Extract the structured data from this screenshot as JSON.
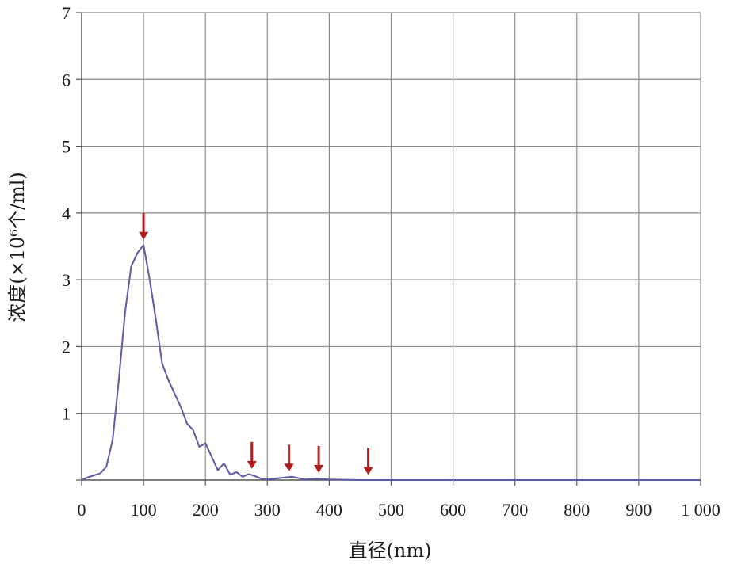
{
  "chart_data": {
    "type": "line",
    "xlabel": "直径(nm)",
    "ylabel": "浓度(×10⁶个/ml)",
    "xlim": [
      0,
      1000
    ],
    "ylim": [
      0,
      7
    ],
    "x_ticks": [
      0,
      100,
      200,
      300,
      400,
      500,
      600,
      700,
      800,
      900,
      1000
    ],
    "x_tick_labels": [
      "0",
      "100",
      "200",
      "300",
      "400",
      "500",
      "600",
      "700",
      "800",
      "900",
      "1 000"
    ],
    "y_ticks": [
      0,
      1,
      2,
      3,
      4,
      5,
      6,
      7
    ],
    "y_tick_labels": [
      "",
      "1",
      "2",
      "3",
      "4",
      "5",
      "6",
      "7"
    ],
    "grid": true,
    "line_color": "#5a5aa8",
    "arrow_color": "#b01c1c",
    "series": [
      {
        "x": [
          0,
          10,
          20,
          30,
          40,
          50,
          60,
          70,
          80,
          90,
          100,
          110,
          120,
          130,
          140,
          150,
          160,
          170,
          180,
          190,
          200,
          205,
          210,
          220,
          230,
          240,
          250,
          260,
          270,
          280,
          290,
          300,
          320,
          340,
          350,
          360,
          380,
          400,
          450,
          500,
          600,
          700,
          800,
          900,
          1000
        ],
        "y": [
          0.0,
          0.04,
          0.07,
          0.1,
          0.2,
          0.6,
          1.5,
          2.5,
          3.2,
          3.4,
          3.52,
          3.0,
          2.4,
          1.75,
          1.5,
          1.3,
          1.1,
          0.85,
          0.75,
          0.5,
          0.55,
          0.45,
          0.35,
          0.15,
          0.25,
          0.08,
          0.12,
          0.05,
          0.09,
          0.06,
          0.02,
          0.01,
          0.03,
          0.05,
          0.03,
          0.01,
          0.02,
          0.01,
          0.0,
          0.0,
          0.0,
          0.0,
          0.0,
          0.0,
          0.0
        ]
      }
    ],
    "arrows_x": [
      100,
      275,
      335,
      383,
      463
    ],
    "arrows_y": [
      3.55,
      0.12,
      0.08,
      0.06,
      0.03
    ]
  }
}
